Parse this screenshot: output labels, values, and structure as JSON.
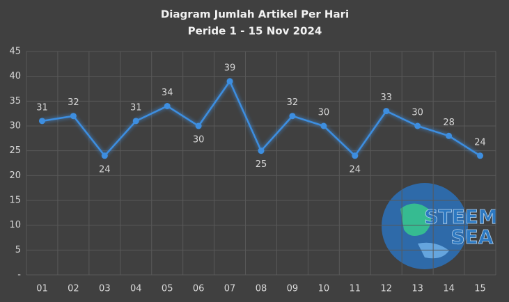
{
  "chart_data": {
    "type": "line",
    "title": "Diagram Jumlah Artikel Per Hari",
    "subtitle": "Peride 1 - 15 Nov 2024",
    "categories": [
      "01",
      "02",
      "03",
      "04",
      "05",
      "06",
      "07",
      "08",
      "09",
      "10",
      "11",
      "12",
      "13",
      "14",
      "15"
    ],
    "series": [
      {
        "name": "Jumlah Artikel",
        "color": "#3d8ee0",
        "values": [
          31,
          32,
          24,
          31,
          34,
          30,
          39,
          25,
          32,
          30,
          24,
          33,
          30,
          28,
          24
        ]
      }
    ],
    "ylim": [
      0,
      45
    ],
    "yticks": [
      {
        "value": 0,
        "label": "-"
      },
      5,
      10,
      15,
      20,
      25,
      30,
      35,
      40,
      45
    ],
    "grid": true,
    "logo_text": [
      "STEEM",
      "SEA"
    ]
  }
}
